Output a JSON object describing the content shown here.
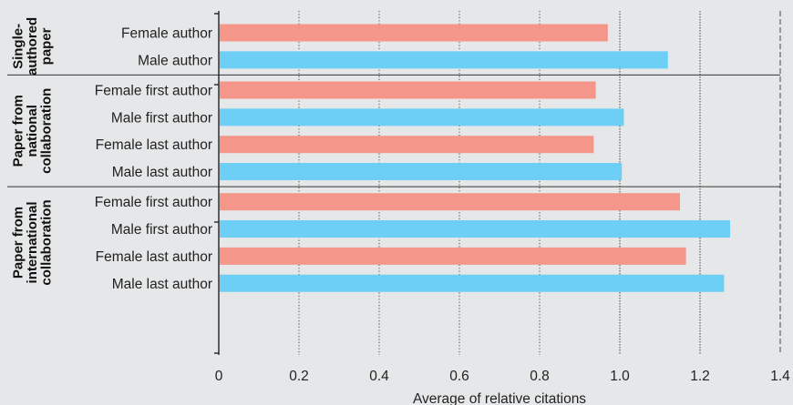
{
  "chart_data": {
    "type": "bar",
    "orientation": "horizontal",
    "xlabel": "Average of relative citations",
    "xlim": [
      0,
      1.4
    ],
    "x_ticks": [
      "0",
      "0.2",
      "0.4",
      "0.6",
      "0.8",
      "1.0",
      "1.2",
      "1.4"
    ],
    "grid": "vertical dotted, solid at 1.0 and 1.2",
    "colors": {
      "female": "#f4978a",
      "male": "#6dcff6"
    },
    "groups": [
      {
        "label_lines": [
          "Single-",
          "authored",
          "paper"
        ],
        "bars": [
          {
            "label": "Female author",
            "value": 0.97,
            "gender": "female"
          },
          {
            "label": "Male author",
            "value": 1.12,
            "gender": "male"
          }
        ]
      },
      {
        "label_lines": [
          "Paper from",
          "national",
          "collaboration"
        ],
        "bars": [
          {
            "label": "Female first author",
            "value": 0.94,
            "gender": "female"
          },
          {
            "label": "Male first author",
            "value": 1.01,
            "gender": "male"
          },
          {
            "label": "Female last author",
            "value": 0.935,
            "gender": "female"
          },
          {
            "label": "Male last author",
            "value": 1.005,
            "gender": "male"
          }
        ]
      },
      {
        "label_lines": [
          "Paper from",
          "international",
          "collaboration"
        ],
        "bars": [
          {
            "label": "Female first author",
            "value": 1.15,
            "gender": "female"
          },
          {
            "label": "Male first author",
            "value": 1.275,
            "gender": "male"
          },
          {
            "label": "Female last author",
            "value": 1.165,
            "gender": "female"
          },
          {
            "label": "Male last author",
            "value": 1.26,
            "gender": "male"
          }
        ]
      }
    ]
  }
}
